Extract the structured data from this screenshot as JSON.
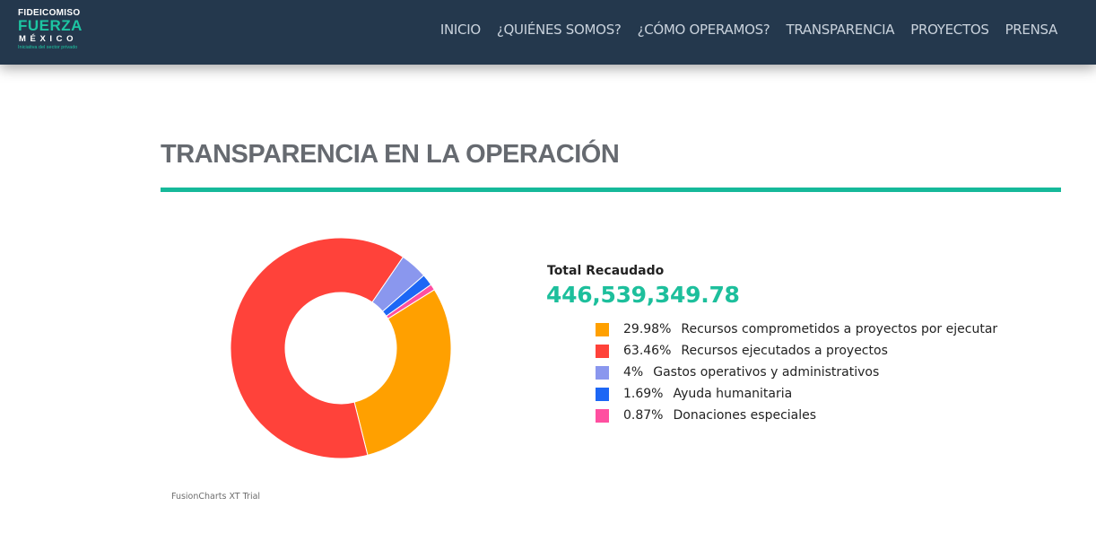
{
  "header": {
    "logo": {
      "line1": "FIDEICOMISO",
      "line2": "FUERZA",
      "line3": "MÉXICO",
      "tagline": "Iniciativa del sector privado"
    },
    "nav": [
      "INICIO",
      "¿QUIÉNES SOMOS?",
      "¿CÓMO OPERAMOS?",
      "TRANSPARENCIA",
      "PROYECTOS",
      "PRENSA"
    ]
  },
  "main": {
    "title": "TRANSPARENCIA EN LA OPERACIÓN",
    "total_label": "Total Recaudado",
    "total_value": "446,539,349.78",
    "chart_credit": "FusionCharts XT Trial"
  },
  "colors": {
    "header_bg": "#24384d",
    "accent": "#1dbf9c"
  },
  "chart_data": {
    "type": "pie",
    "title": "",
    "donut": true,
    "slices": [
      {
        "label": "Recursos comprometidos a proyectos por ejecutar",
        "value": 29.98,
        "value_text": "29.98%",
        "color": "#ffa000"
      },
      {
        "label": "Recursos ejecutados a proyectos",
        "value": 63.46,
        "value_text": "63.46%",
        "color": "#ff423a"
      },
      {
        "label": "Gastos operativos y administrativos",
        "value": 4,
        "value_text": "4%",
        "color": "#8a97ee"
      },
      {
        "label": "Ayuda humanitaria",
        "value": 1.69,
        "value_text": "1.69%",
        "color": "#1d67f5"
      },
      {
        "label": "Donaciones especiales",
        "value": 0.87,
        "value_text": "0.87%",
        "color": "#ff4fa0"
      }
    ],
    "legend_position": "right"
  }
}
